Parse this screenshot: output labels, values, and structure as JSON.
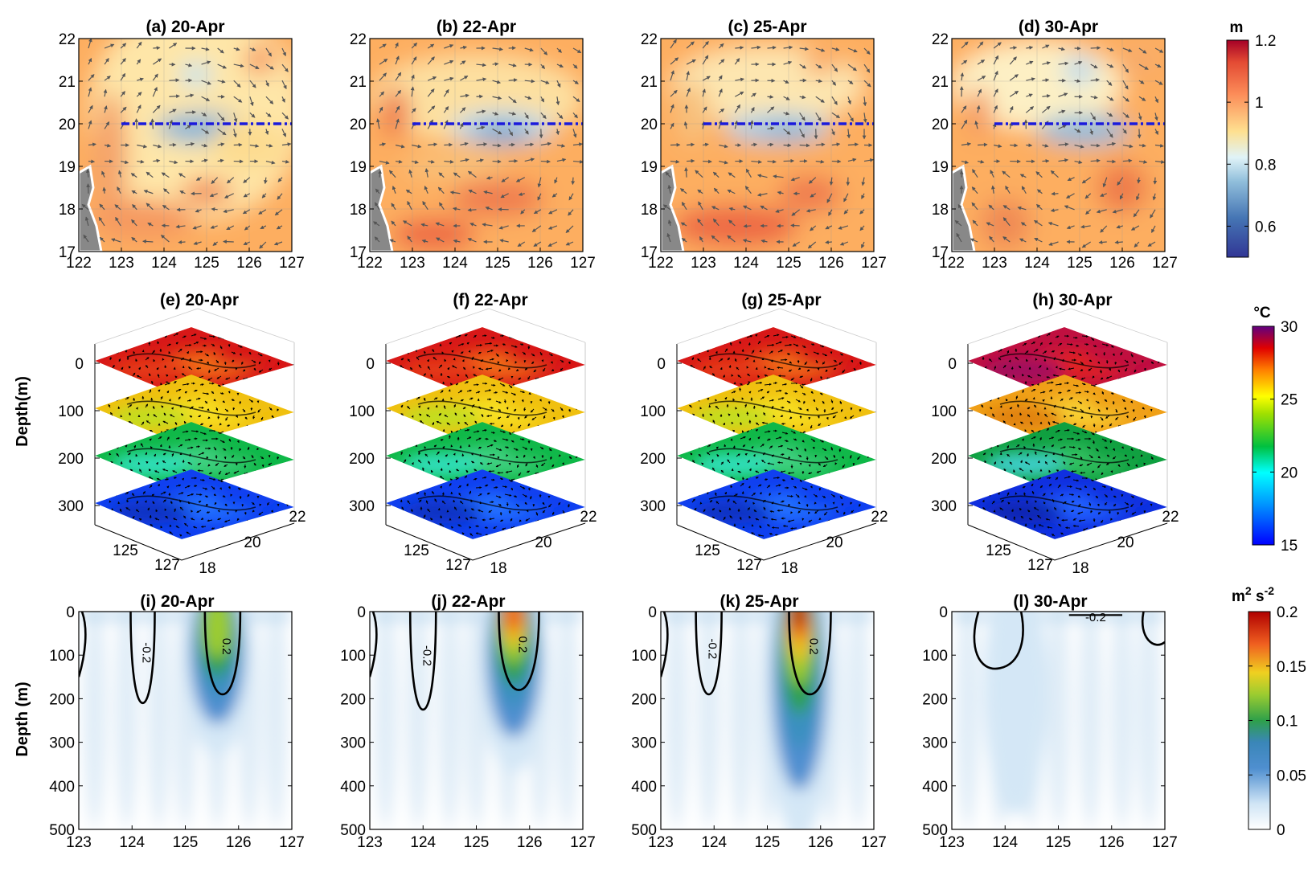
{
  "chart_data": [
    {
      "type": "heatmap",
      "row": "sea surface height with surface current vectors",
      "colorbar": {
        "unit": "m",
        "range": [
          0.5,
          1.2
        ],
        "ticks": [
          "0.6",
          "0.8",
          "1",
          "1.2"
        ],
        "colormap": "RdYlBu reversed"
      },
      "x_ticks": [
        "122",
        "123",
        "124",
        "125",
        "126",
        "127"
      ],
      "y_ticks": [
        "17",
        "18",
        "19",
        "20",
        "21",
        "22"
      ],
      "xlim": [
        122,
        127
      ],
      "ylim": [
        17,
        22
      ],
      "section_line": {
        "lat": 20,
        "lon": [
          123,
          127
        ],
        "color": "#1a1adc"
      },
      "panels": [
        {
          "title": "(a) 20-Apr",
          "date": "20-Apr"
        },
        {
          "title": "(b) 22-Apr",
          "date": "22-Apr"
        },
        {
          "title": "(c) 25-Apr",
          "date": "25-Apr"
        },
        {
          "title": "(d) 30-Apr",
          "date": "30-Apr"
        }
      ]
    },
    {
      "type": "heatmap",
      "row": "3D temperature slices with current vectors",
      "ylabel": "Depth(m)",
      "depth_ticks": [
        "0",
        "100",
        "200",
        "300"
      ],
      "depth_levels": [
        0,
        100,
        200,
        300
      ],
      "lon_ticks": [
        "125",
        "127"
      ],
      "lat_ticks": [
        "18",
        "20",
        "22"
      ],
      "colorbar": {
        "unit": "°C",
        "range": [
          15,
          30
        ],
        "ticks": [
          "15",
          "20",
          "25",
          "30"
        ],
        "colormap": "jet"
      },
      "panels": [
        {
          "title": "(e) 20-Apr",
          "date": "20-Apr"
        },
        {
          "title": "(f) 22-Apr",
          "date": "22-Apr"
        },
        {
          "title": "(g) 25-Apr",
          "date": "25-Apr"
        },
        {
          "title": "(h) 30-Apr",
          "date": "30-Apr"
        }
      ]
    },
    {
      "type": "heatmap",
      "row": "kinetic energy section along 20N",
      "ylabel": "Depth (m)",
      "x_ticks": [
        "123",
        "124",
        "125",
        "126",
        "127"
      ],
      "y_ticks": [
        "0",
        "100",
        "200",
        "300",
        "400",
        "500"
      ],
      "xlim": [
        123,
        127
      ],
      "ylim": [
        500,
        0
      ],
      "colorbar": {
        "unit": "m² s⁻²",
        "unit_base": "m",
        "unit_exp1": "2",
        "unit_mid": " s",
        "unit_exp2": "-2",
        "range": [
          0,
          0.2
        ],
        "ticks": [
          "0",
          "0.05",
          "0.1",
          "0.15",
          "0.2"
        ],
        "colormap": "white-blue-green-yellow-red"
      },
      "contour_labels": [
        "-0.2",
        "0.2"
      ],
      "panels": [
        {
          "title": "(i) 20-Apr",
          "date": "20-Apr",
          "core_lon": 125.6,
          "core_depth": 130,
          "peak": 0.12
        },
        {
          "title": "(j) 22-Apr",
          "date": "22-Apr",
          "core_lon": 125.7,
          "core_depth": 150,
          "peak": 0.18
        },
        {
          "title": "(k) 25-Apr",
          "date": "25-Apr",
          "core_lon": 125.6,
          "core_depth": 230,
          "peak": 0.2
        },
        {
          "title": "(l) 30-Apr",
          "date": "30-Apr",
          "core_lon": 124.2,
          "core_depth": 200,
          "peak": 0.04
        }
      ]
    }
  ]
}
